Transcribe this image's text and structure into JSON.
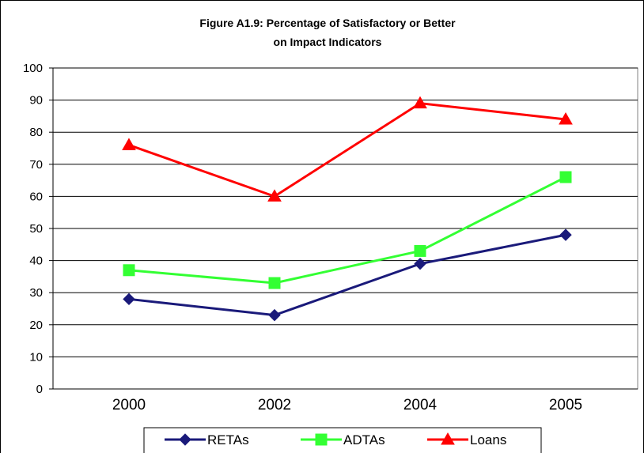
{
  "chart_data": {
    "type": "line",
    "title": "Figure A1.9: Percentage of Satisfactory or Better",
    "subtitle": "on Impact Indicators",
    "categories": [
      "2000",
      "2002",
      "2004",
      "2005"
    ],
    "ylim": [
      0,
      100
    ],
    "yticks": [
      0,
      10,
      20,
      30,
      40,
      50,
      60,
      70,
      80,
      90,
      100
    ],
    "grid": true,
    "legend_position": "bottom",
    "series": [
      {
        "name": "RETAs",
        "values": [
          28,
          23,
          39,
          48
        ],
        "color": "#1A1A7A",
        "marker": "diamond"
      },
      {
        "name": "ADTAs",
        "values": [
          37,
          33,
          43,
          66
        ],
        "color": "#33FF33",
        "marker": "square"
      },
      {
        "name": "Loans",
        "values": [
          76,
          60,
          89,
          84
        ],
        "color": "#FF0000",
        "marker": "triangle"
      }
    ]
  }
}
